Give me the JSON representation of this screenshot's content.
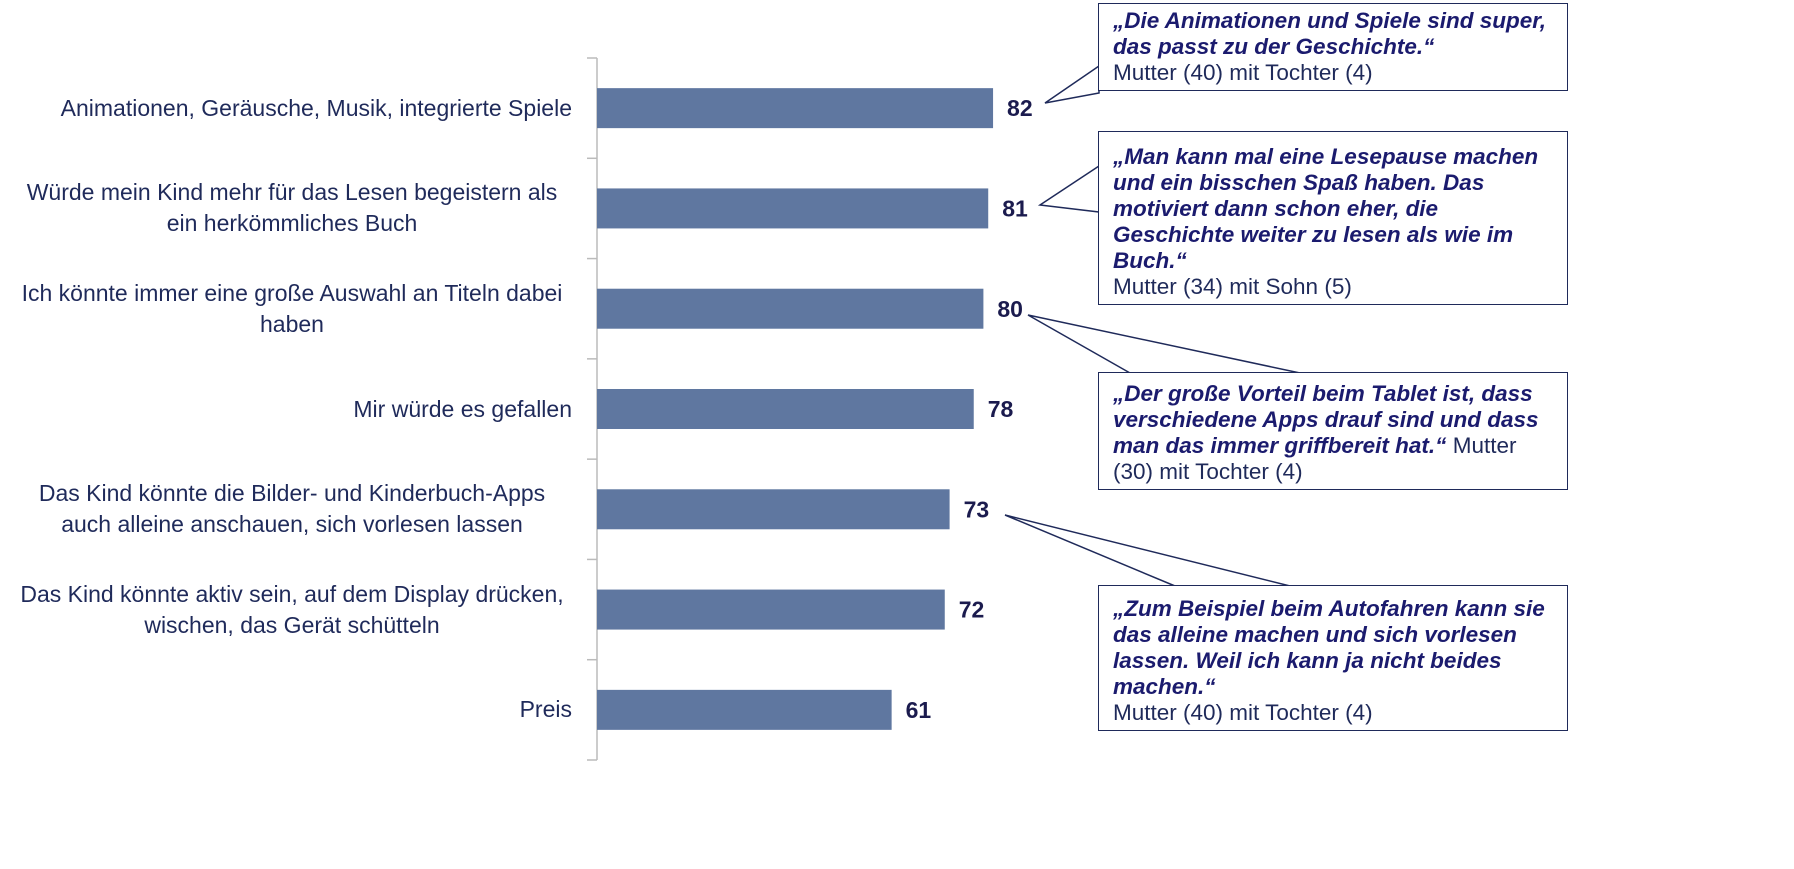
{
  "chart_data": {
    "type": "barh",
    "categories": [
      "Animationen, Geräusche, Musik, integrierte Spiele",
      "Würde mein Kind mehr für das Lesen begeistern als ein herkömmliches Buch",
      "Ich könnte immer eine große Auswahl an Titeln dabei haben",
      "Mir würde es gefallen",
      "Das Kind könnte die Bilder- und Kinderbuch-Apps auch alleine anschauen, sich vorlesen lassen",
      "Das Kind könnte aktiv sein, auf dem Display drücken, wischen, das Gerät schütteln",
      "Preis"
    ],
    "values": [
      82,
      81,
      80,
      78,
      73,
      72,
      61
    ],
    "color": "#5f77a0",
    "xlim": [
      0,
      100
    ],
    "annotations": [
      {
        "quote": "„Die Animationen und Spiele sind super, das passt zu der Geschichte.“",
        "source": "Mutter (40) mit Tochter (4)"
      },
      {
        "quote": "„Man kann mal eine Lesepause machen und ein bisschen Spaß haben. Das motiviert dann schon eher, die Geschichte weiter zu lesen als wie im Buch.“",
        "source": "Mutter (34) mit Sohn (5)"
      },
      {
        "quote": "„Der große Vorteil beim Tablet ist, dass verschiedene Apps drauf sind und dass man das immer griffbereit hat.“",
        "source": "Mutter (30) mit Tochter (4)"
      },
      {
        "quote": "„Zum Beispiel beim Autofahren kann sie das alleine machen und sich vorlesen lassen. Weil ich kann ja nicht beides machen.“",
        "source": "Mutter (40) mit Tochter (4)"
      }
    ]
  }
}
